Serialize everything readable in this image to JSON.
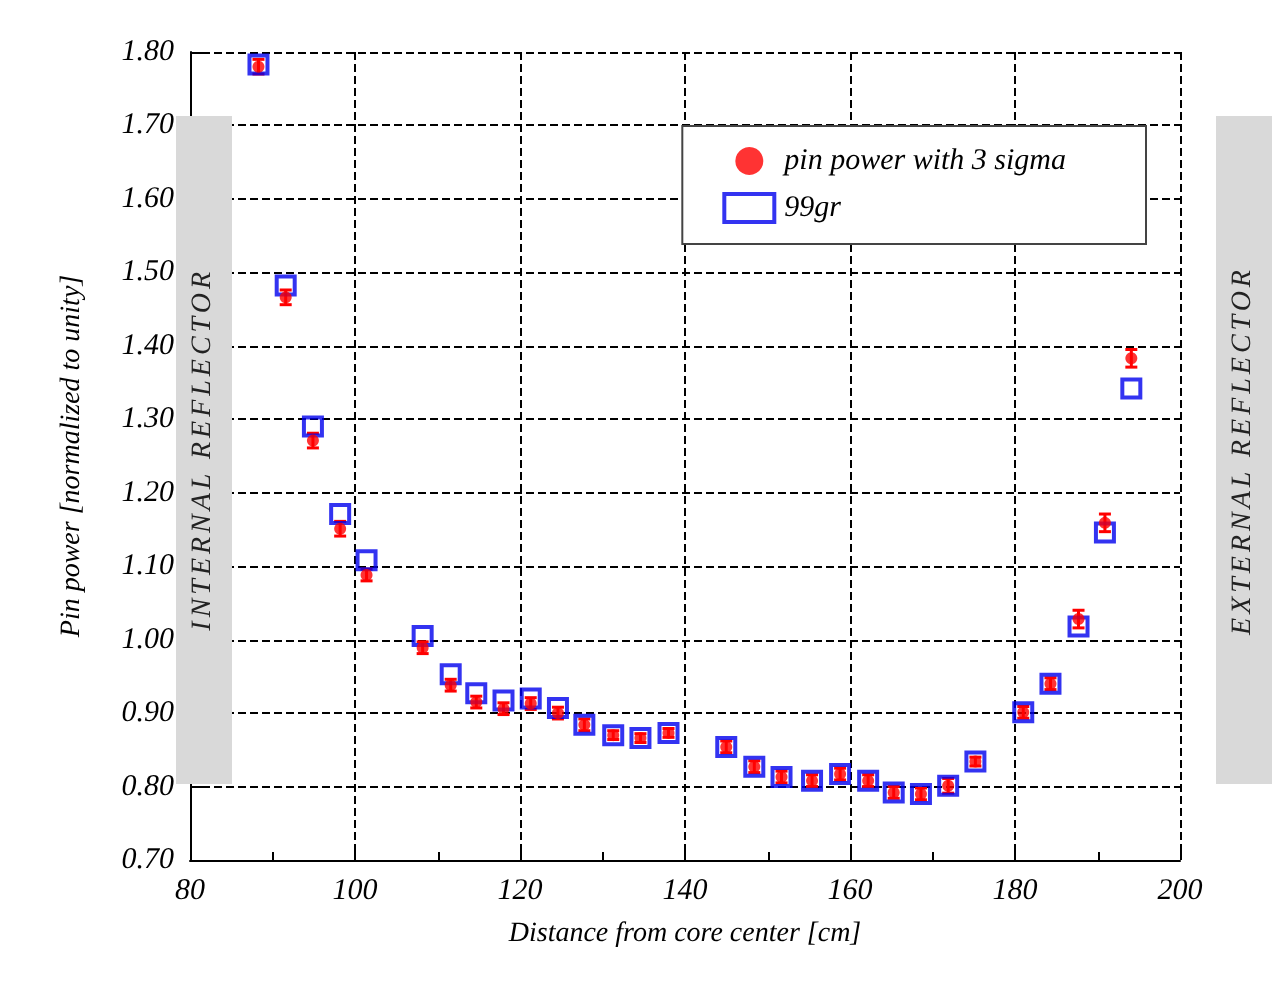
{
  "chart_data": {
    "type": "scatter",
    "xlabel": "Distance from core center [cm]",
    "ylabel": "Pin power [normalized to unity]",
    "annotations": [
      "INTERNAL REFLECTOR",
      "EXTERNAL REFLECTOR"
    ],
    "x": [
      88.3,
      91.6,
      94.9,
      98.2,
      101.4,
      108.2,
      111.6,
      114.7,
      118,
      121.3,
      124.6,
      127.8,
      131.3,
      134.6,
      138,
      145,
      148.4,
      151.7,
      155.4,
      158.8,
      162.2,
      165.3,
      168.6,
      171.9,
      175.2,
      181,
      184.3,
      187.7,
      190.9,
      194.1
    ],
    "series": [
      {
        "name": "pin power with 3 sigma",
        "color": "#ff0000",
        "marker": "circle",
        "values": [
          1.78,
          1.466,
          1.271,
          1.151,
          1.088,
          0.989,
          0.938,
          0.915,
          0.906,
          0.913,
          0.9,
          0.884,
          0.87,
          0.866,
          0.873,
          0.854,
          0.827,
          0.813,
          0.808,
          0.817,
          0.808,
          0.792,
          0.79,
          0.801,
          0.834,
          0.901,
          0.94,
          1.028,
          1.159,
          1.383
        ],
        "errors": [
          0.01,
          0.01,
          0.01,
          0.01,
          0.008,
          0.008,
          0.008,
          0.008,
          0.008,
          0.008,
          0.008,
          0.008,
          0.006,
          0.006,
          0.006,
          0.008,
          0.008,
          0.008,
          0.008,
          0.008,
          0.008,
          0.008,
          0.008,
          0.01,
          0.006,
          0.008,
          0.008,
          0.012,
          0.012,
          0.012
        ]
      },
      {
        "name": "99gr",
        "color": "#0000ee",
        "marker": "square",
        "values": [
          1.783,
          1.482,
          1.29,
          1.171,
          1.108,
          1.005,
          0.953,
          0.927,
          0.917,
          0.92,
          0.907,
          0.884,
          0.87,
          0.866,
          0.873,
          0.854,
          0.827,
          0.813,
          0.808,
          0.817,
          0.808,
          0.792,
          0.79,
          0.801,
          0.834,
          0.901,
          0.94,
          1.018,
          1.146,
          1.342
        ]
      }
    ],
    "xlim": [
      80,
      200
    ],
    "xticks": [
      80,
      100,
      120,
      140,
      160,
      180,
      200
    ],
    "ylim": [
      0.7,
      1.8
    ],
    "yticks": [
      {
        "value": 0.7,
        "label": "0.70"
      },
      {
        "value": 0.8,
        "label": "0.80"
      },
      {
        "value": 0.9,
        "label": "0.90"
      },
      {
        "value": 1.0,
        "label": "1.00"
      },
      {
        "value": 1.1,
        "label": "1.10"
      },
      {
        "value": 1.2,
        "label": "1.20"
      },
      {
        "value": 1.3,
        "label": "1.30"
      },
      {
        "value": 1.4,
        "label": "1.40"
      },
      {
        "value": 1.5,
        "label": "1.50"
      },
      {
        "value": 1.6,
        "label": "1.60"
      },
      {
        "value": 1.7,
        "label": "1.70"
      },
      {
        "value": 1.8,
        "label": "1.80"
      }
    ],
    "grid": true,
    "legend": "top right"
  }
}
